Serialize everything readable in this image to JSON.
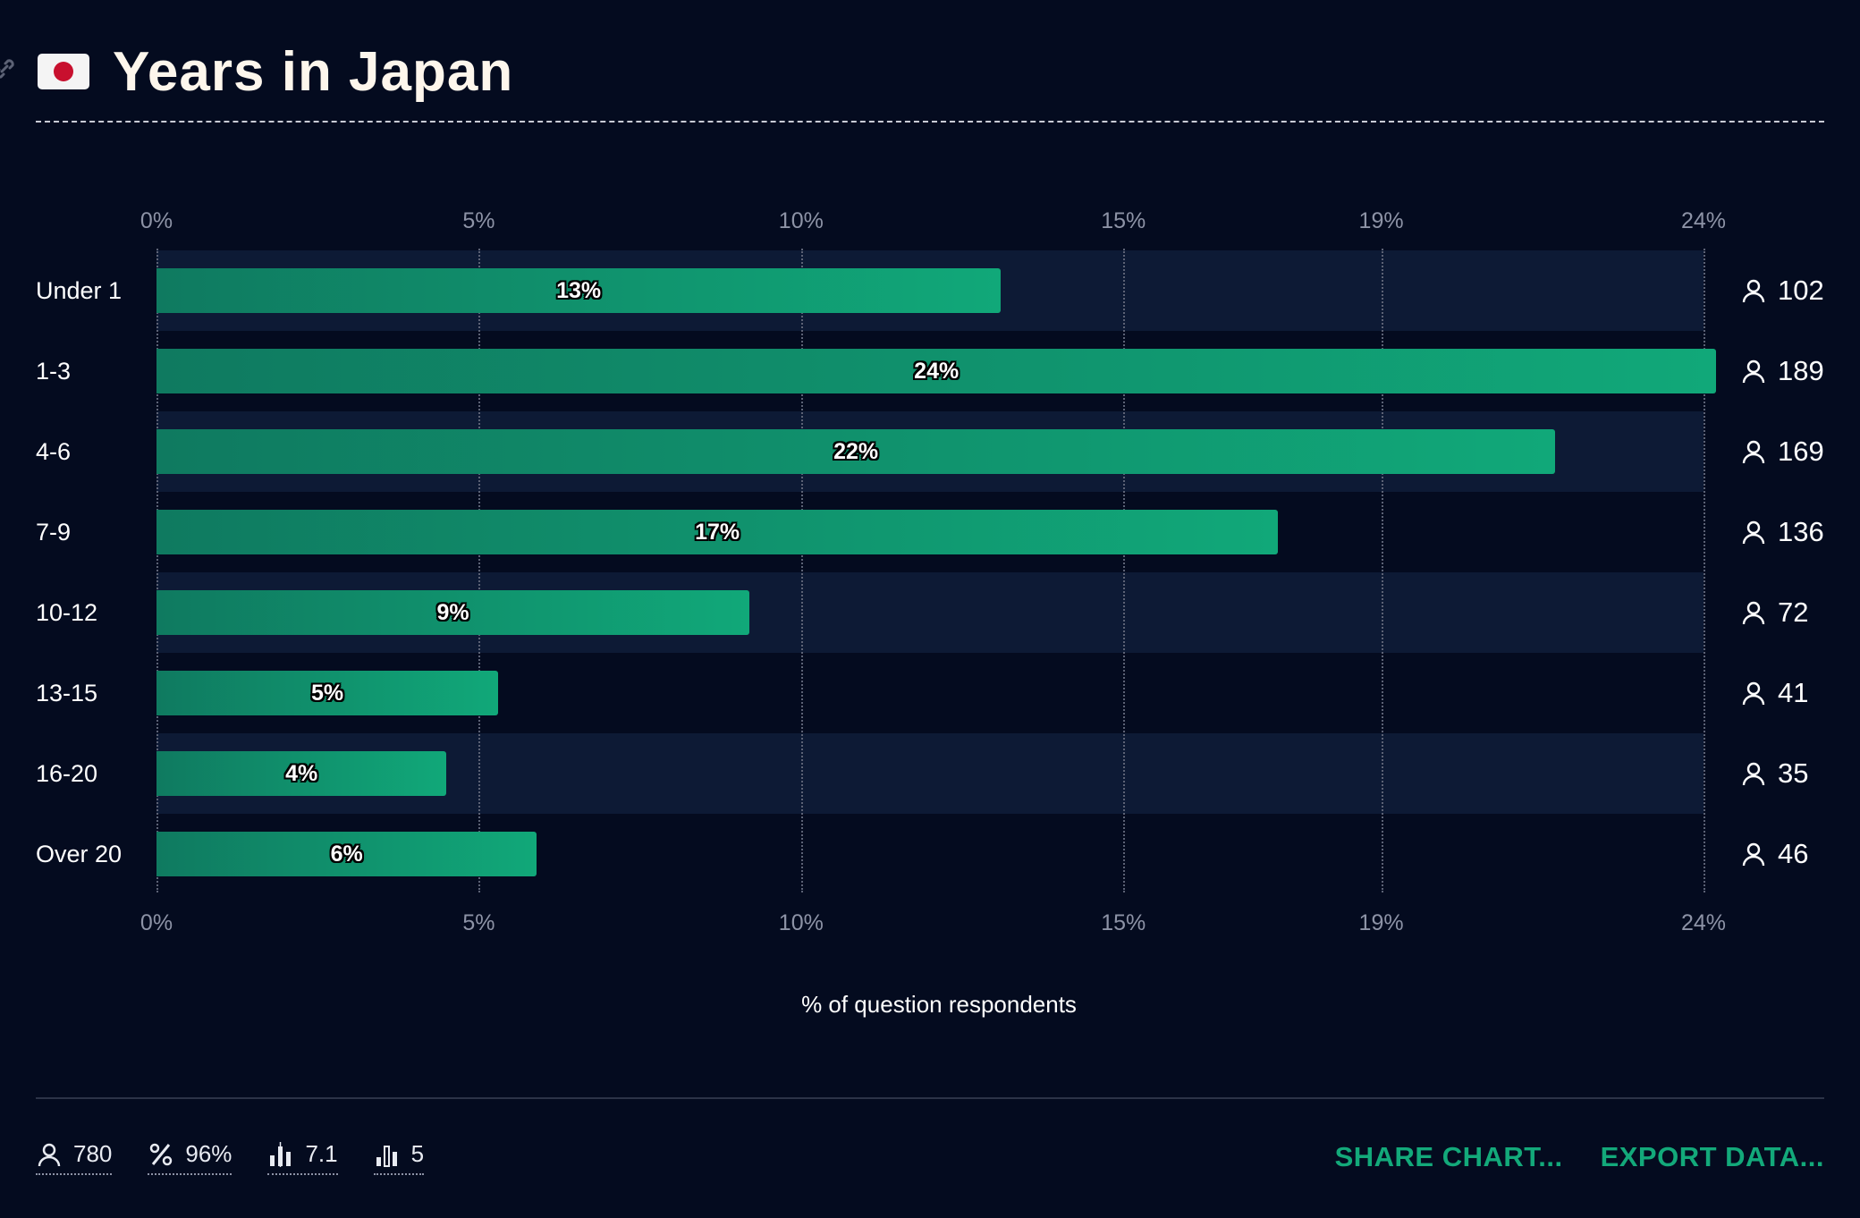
{
  "header": {
    "title": "Years in Japan",
    "flag_icon": "japan-flag-icon",
    "accent": "#13a97a"
  },
  "chart_data": {
    "type": "bar",
    "orientation": "horizontal",
    "title": "Years in Japan",
    "xlabel": "% of question respondents",
    "xlim": [
      0,
      24
    ],
    "ticks": [
      {
        "value": 0,
        "label": "0%"
      },
      {
        "value": 5,
        "label": "5%"
      },
      {
        "value": 10,
        "label": "10%"
      },
      {
        "value": 15,
        "label": "15%"
      },
      {
        "value": 19,
        "label": "19%"
      },
      {
        "value": 24,
        "label": "24%"
      }
    ],
    "categories": [
      "Under 1",
      "1-3",
      "4-6",
      "7-9",
      "10-12",
      "13-15",
      "16-20",
      "Over 20"
    ],
    "values": [
      13.1,
      24.2,
      21.7,
      17.4,
      9.2,
      5.3,
      4.5,
      5.9
    ],
    "value_labels": [
      "13%",
      "24%",
      "22%",
      "17%",
      "9%",
      "5%",
      "4%",
      "6%"
    ],
    "counts": [
      "102",
      "189",
      "169",
      "136",
      "72",
      "41",
      "35",
      "46"
    ],
    "grid": true,
    "bar_color": "#11a879"
  },
  "footer": {
    "stats": [
      {
        "icon": "user-icon",
        "value": "780"
      },
      {
        "icon": "percent-icon",
        "value": "96%"
      },
      {
        "icon": "median-chart-icon",
        "value": "7.1"
      },
      {
        "icon": "mode-chart-icon",
        "value": "5"
      }
    ],
    "actions": [
      "SHARE CHART...",
      "EXPORT DATA..."
    ]
  }
}
